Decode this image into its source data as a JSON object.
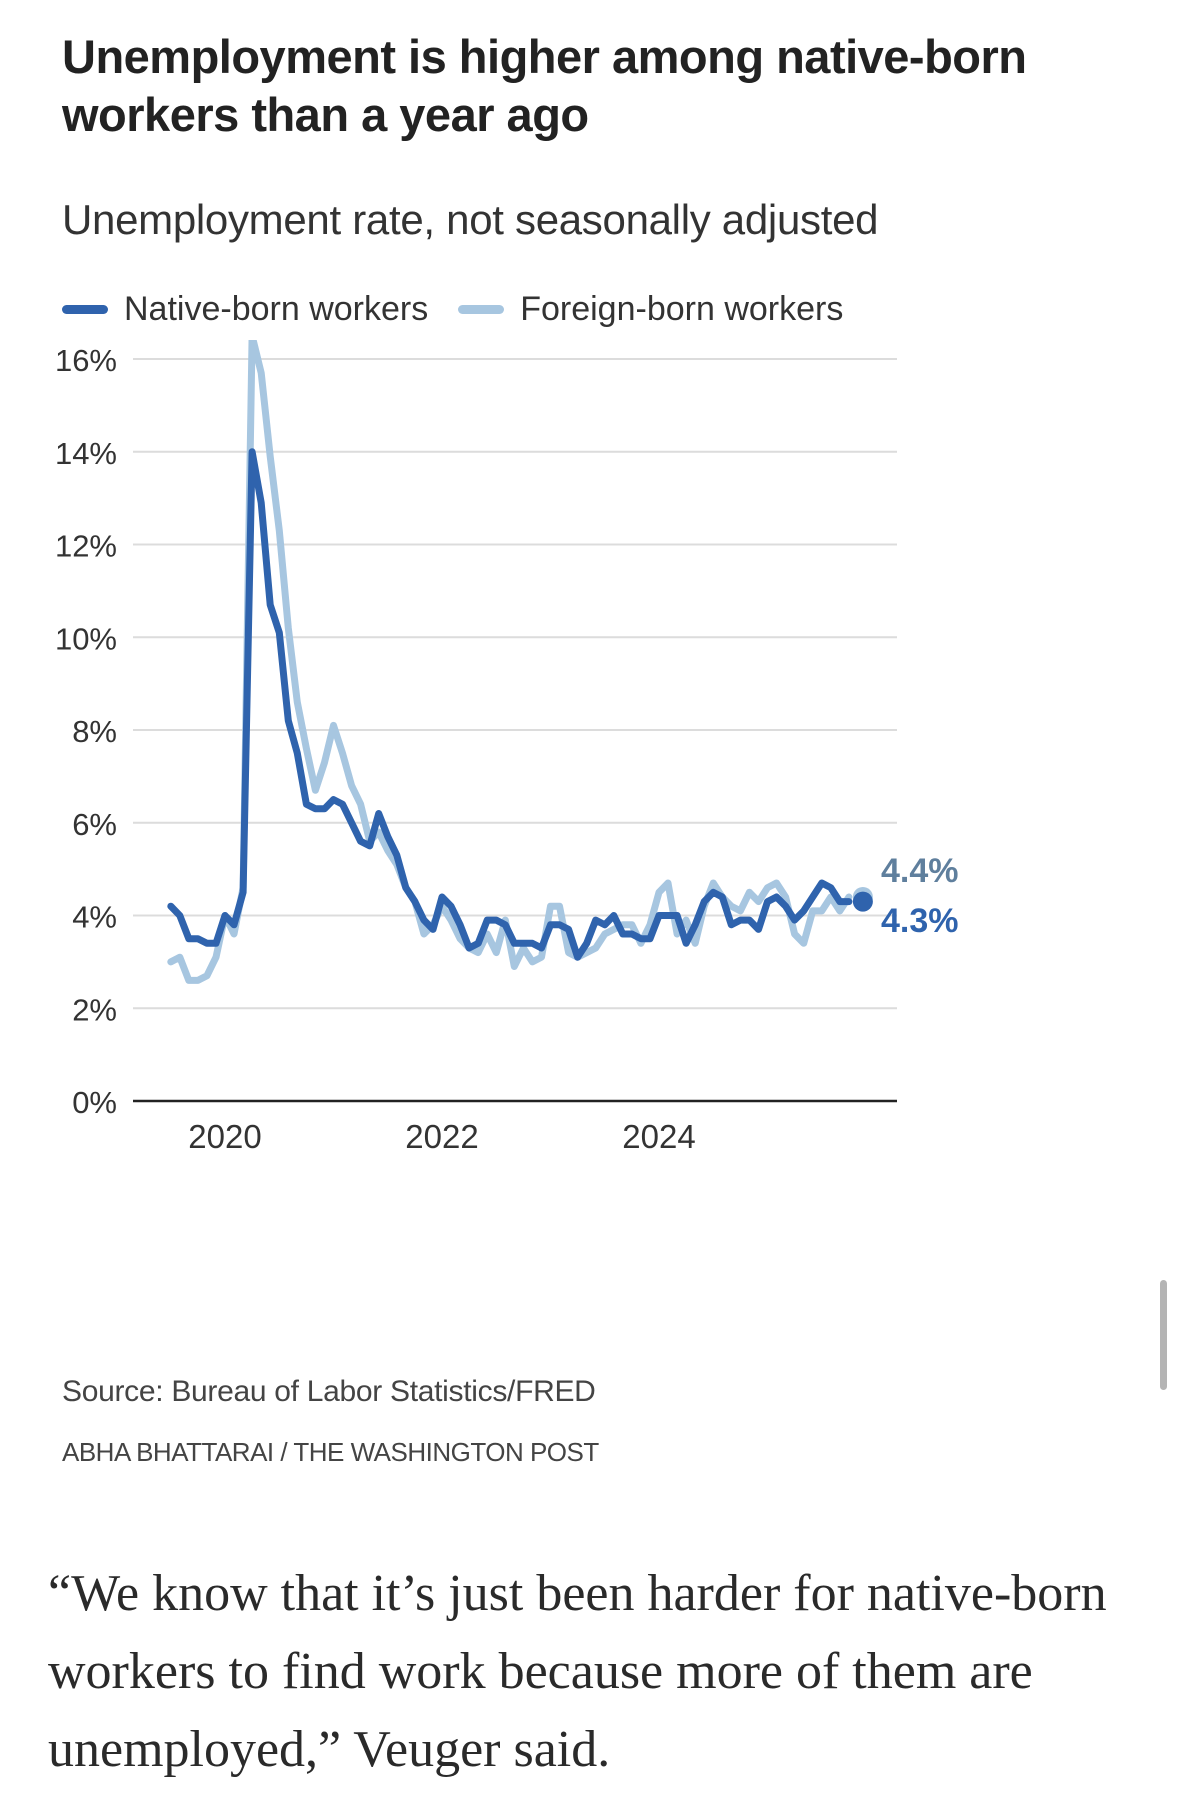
{
  "header": {
    "title": "Unemployment is higher among native-born workers than a year ago",
    "subtitle": "Unemployment rate, not seasonally adjusted"
  },
  "legend": [
    {
      "label": "Native-born workers",
      "color": "#2f63ad"
    },
    {
      "label": "Foreign-born workers",
      "color": "#a7c6e0"
    }
  ],
  "chart_data": {
    "type": "line",
    "title": "Unemployment is higher among native-born workers than a year ago",
    "subtitle": "Unemployment rate, not seasonally adjusted",
    "xlabel": "",
    "ylabel": "",
    "ylim": [
      0,
      16
    ],
    "yticks": [
      "0%",
      "2%",
      "4%",
      "6%",
      "8%",
      "10%",
      "12%",
      "14%",
      "16%"
    ],
    "ytick_values": [
      0,
      2,
      4,
      6,
      8,
      10,
      12,
      14,
      16
    ],
    "xticks": [
      "2020",
      "2022",
      "2024"
    ],
    "xtick_values": [
      2020.0,
      2022.0,
      2024.0
    ],
    "grid": true,
    "legend_position": "top-left",
    "x_start": "2019-07",
    "x_step": "month",
    "series": [
      {
        "name": "Native-born workers",
        "color": "#2f63ad",
        "end_label": "4.3%",
        "values": [
          4.2,
          4.0,
          3.5,
          3.5,
          3.4,
          3.4,
          4.0,
          3.8,
          4.5,
          14.0,
          12.9,
          10.7,
          10.1,
          8.2,
          7.5,
          6.4,
          6.3,
          6.3,
          6.5,
          6.4,
          6.0,
          5.6,
          5.5,
          6.2,
          5.7,
          5.3,
          4.6,
          4.3,
          3.9,
          3.7,
          4.4,
          4.2,
          3.8,
          3.3,
          3.4,
          3.9,
          3.9,
          3.8,
          3.4,
          3.4,
          3.4,
          3.3,
          3.8,
          3.8,
          3.7,
          3.1,
          3.4,
          3.9,
          3.8,
          4.0,
          3.6,
          3.6,
          3.5,
          3.5,
          4.0,
          4.0,
          4.0,
          3.4,
          3.8,
          4.3,
          4.5,
          4.4,
          3.8,
          3.9,
          3.9,
          3.7,
          4.3,
          4.4,
          4.2,
          3.9,
          4.1,
          4.4,
          4.7,
          4.6,
          4.3,
          4.3
        ]
      },
      {
        "name": "Foreign-born workers",
        "color": "#a7c6e0",
        "end_label": "4.4%",
        "values": [
          3.0,
          3.1,
          2.6,
          2.6,
          2.7,
          3.1,
          4.0,
          3.6,
          4.6,
          16.5,
          15.7,
          13.9,
          12.3,
          10.2,
          8.6,
          7.6,
          6.7,
          7.3,
          8.1,
          7.5,
          6.8,
          6.4,
          5.6,
          5.8,
          5.4,
          5.1,
          4.6,
          4.3,
          3.6,
          3.8,
          4.2,
          3.9,
          3.5,
          3.3,
          3.2,
          3.6,
          3.2,
          3.9,
          2.9,
          3.3,
          3.0,
          3.1,
          4.2,
          4.2,
          3.2,
          3.1,
          3.2,
          3.3,
          3.6,
          3.7,
          3.8,
          3.8,
          3.4,
          3.8,
          4.5,
          4.7,
          3.6,
          3.9,
          3.4,
          4.2,
          4.7,
          4.4,
          4.2,
          4.1,
          4.5,
          4.3,
          4.6,
          4.7,
          4.4,
          3.6,
          3.4,
          4.1,
          4.1,
          4.4,
          4.1,
          4.4
        ]
      }
    ]
  },
  "footer": {
    "source": "Source: Bureau of Labor Statistics/FRED",
    "credit": "ABHA BHATTARAI / THE WASHINGTON POST"
  },
  "body_text": "“We know that it’s just been harder for native-born workers to find work because more of them are unemployed,” Veuger said."
}
